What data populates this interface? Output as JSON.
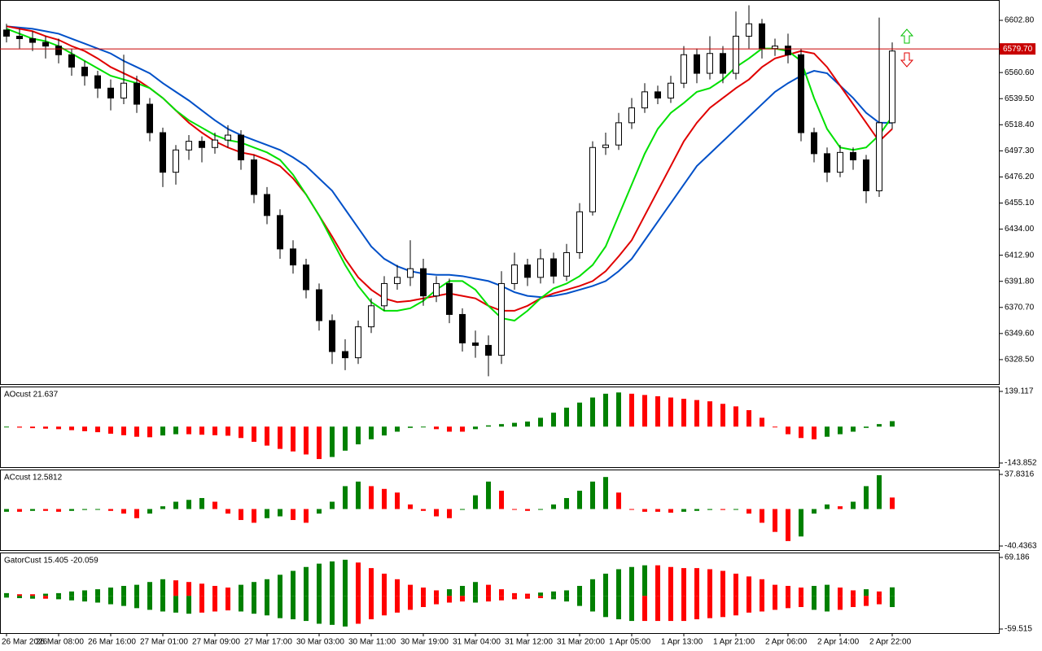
{
  "chart_data": [
    {
      "type": "candlestick",
      "categories": [
        "26 Mar 2026",
        null,
        null,
        null,
        "26 Mar 08:00",
        null,
        null,
        null,
        "26 Mar 16:00",
        null,
        null,
        null,
        "27 Mar 01:00",
        null,
        null,
        null,
        "27 Mar 09:00",
        null,
        null,
        null,
        "27 Mar 17:00",
        null,
        null,
        null,
        "30 Mar 03:00",
        null,
        null,
        null,
        "30 Mar 11:00",
        null,
        null,
        null,
        "30 Mar 19:00",
        null,
        null,
        null,
        "31 Mar 04:00",
        null,
        null,
        null,
        "31 Mar 12:00",
        null,
        null,
        null,
        "31 Mar 20:00",
        null,
        null,
        null,
        "1 Apr 05:00",
        null,
        null,
        null,
        "1 Apr 13:00",
        null,
        null,
        null,
        "1 Apr 21:00",
        null,
        null,
        null,
        "2 Apr 06:00",
        null,
        null,
        null,
        "2 Apr 14:00",
        null,
        null,
        null,
        "2 Apr 22:00"
      ],
      "open": [
        6595,
        6590,
        6588,
        6585,
        6582,
        6575,
        6565,
        6558,
        6548,
        6540,
        6552,
        6535,
        6512,
        6480,
        6498,
        6505,
        6500,
        6506,
        6510,
        6490,
        6462,
        6445,
        6418,
        6405,
        6385,
        6360,
        6335,
        6330,
        6355,
        6372,
        6390,
        6395,
        6402,
        6380,
        6390,
        6365,
        6342,
        6340,
        6332,
        6390,
        6405,
        6395,
        6410,
        6396,
        6415,
        6448,
        6500,
        6502,
        6520,
        6532,
        6545,
        6540,
        6552,
        6575,
        6560,
        6576,
        6560,
        6590,
        6600,
        6580,
        6582,
        6575,
        6512,
        6495,
        6480,
        6496,
        6490,
        6465,
        6520
      ],
      "high": [
        6600,
        6596,
        6594,
        6590,
        6588,
        6580,
        6570,
        6562,
        6555,
        6575,
        6558,
        6540,
        6516,
        6502,
        6510,
        6509,
        6512,
        6518,
        6514,
        6494,
        6468,
        6450,
        6425,
        6410,
        6390,
        6365,
        6345,
        6360,
        6378,
        6396,
        6405,
        6425,
        6410,
        6396,
        6394,
        6370,
        6352,
        6348,
        6400,
        6415,
        6410,
        6418,
        6415,
        6422,
        6455,
        6505,
        6512,
        6528,
        6540,
        6552,
        6550,
        6558,
        6582,
        6580,
        6590,
        6582,
        6610,
        6615,
        6604,
        6588,
        6592,
        6580,
        6516,
        6500,
        6502,
        6500,
        6494,
        6605,
        6585
      ],
      "low": [
        6585,
        6580,
        6578,
        6572,
        6568,
        6558,
        6550,
        6540,
        6530,
        6535,
        6528,
        6505,
        6468,
        6470,
        6490,
        6488,
        6495,
        6500,
        6482,
        6455,
        6438,
        6410,
        6398,
        6378,
        6352,
        6325,
        6320,
        6325,
        6350,
        6368,
        6385,
        6388,
        6372,
        6375,
        6358,
        6335,
        6330,
        6315,
        6325,
        6385,
        6388,
        6390,
        6390,
        6392,
        6410,
        6445,
        6494,
        6498,
        6515,
        6528,
        6535,
        6536,
        6548,
        6552,
        6555,
        6552,
        6555,
        6580,
        6572,
        6574,
        6568,
        6505,
        6488,
        6472,
        6476,
        6482,
        6455,
        6460,
        6515
      ],
      "close": [
        6590,
        6588,
        6585,
        6582,
        6575,
        6565,
        6558,
        6548,
        6540,
        6552,
        6535,
        6512,
        6480,
        6498,
        6505,
        6500,
        6506,
        6510,
        6490,
        6462,
        6445,
        6418,
        6405,
        6385,
        6360,
        6335,
        6330,
        6355,
        6372,
        6390,
        6395,
        6402,
        6380,
        6390,
        6365,
        6342,
        6340,
        6332,
        6390,
        6405,
        6395,
        6410,
        6396,
        6415,
        6448,
        6500,
        6502,
        6520,
        6532,
        6545,
        6540,
        6552,
        6575,
        6560,
        6576,
        6560,
        6590,
        6600,
        6580,
        6582,
        6575,
        6512,
        6495,
        6480,
        6496,
        6490,
        6465,
        6520,
        6578
      ],
      "up_color": "#ffffff",
      "down_color": "#000000",
      "lines": [
        {
          "color": "#0050c8",
          "values": [
            6598,
            6597,
            6596,
            6594,
            6592,
            6588,
            6584,
            6580,
            6576,
            6570,
            6565,
            6560,
            6552,
            6545,
            6538,
            6530,
            6522,
            6515,
            6510,
            6506,
            6502,
            6498,
            6492,
            6485,
            6475,
            6465,
            6450,
            6435,
            6420,
            6410,
            6404,
            6400,
            6398,
            6397,
            6397,
            6396,
            6394,
            6392,
            6388,
            6383,
            6380,
            6379,
            6380,
            6382,
            6385,
            6388,
            6392,
            6400,
            6410,
            6425,
            6440,
            6455,
            6470,
            6485,
            6495,
            6505,
            6515,
            6525,
            6535,
            6545,
            6552,
            6558,
            6562,
            6560,
            6550,
            6540,
            6528,
            6520,
            6520
          ]
        },
        {
          "color": "#e00000",
          "values": [
            6598,
            6596,
            6594,
            6590,
            6587,
            6582,
            6578,
            6572,
            6565,
            6560,
            6555,
            6548,
            6540,
            6530,
            6520,
            6512,
            6505,
            6500,
            6496,
            6494,
            6490,
            6485,
            6475,
            6462,
            6445,
            6428,
            6410,
            6395,
            6385,
            6378,
            6375,
            6376,
            6378,
            6380,
            6382,
            6380,
            6378,
            6372,
            6368,
            6368,
            6372,
            6378,
            6382,
            6385,
            6388,
            6392,
            6400,
            6412,
            6425,
            6445,
            6465,
            6485,
            6505,
            6520,
            6532,
            6540,
            6548,
            6555,
            6565,
            6572,
            6575,
            6578,
            6576,
            6565,
            6550,
            6535,
            6520,
            6505,
            6515
          ]
        },
        {
          "color": "#00e000",
          "values": [
            6596,
            6592,
            6588,
            6586,
            6582,
            6576,
            6570,
            6564,
            6558,
            6555,
            6552,
            6548,
            6540,
            6530,
            6522,
            6516,
            6510,
            6506,
            6504,
            6500,
            6496,
            6490,
            6478,
            6462,
            6445,
            6425,
            6405,
            6388,
            6375,
            6368,
            6368,
            6370,
            6376,
            6385,
            6392,
            6392,
            6385,
            6372,
            6362,
            6360,
            6368,
            6378,
            6386,
            6390,
            6396,
            6405,
            6420,
            6445,
            6470,
            6495,
            6515,
            6528,
            6536,
            6545,
            6548,
            6555,
            6565,
            6572,
            6580,
            6580,
            6578,
            6570,
            6540,
            6515,
            6500,
            6498,
            6500,
            6510,
            6525
          ]
        }
      ],
      "current_price": {
        "value": 6579.7,
        "label": "6579.70"
      },
      "current_price_color": "#c80000",
      "ylim": [
        6308.7,
        6618.6
      ],
      "yticks": [
        {
          "value": 6602.8,
          "label": "6602.80"
        },
        {
          "value": 6560.6,
          "label": "6560.60"
        },
        {
          "value": 6539.5,
          "label": "6539.50"
        },
        {
          "value": 6518.4,
          "label": "6518.40"
        },
        {
          "value": 6497.3,
          "label": "6497.30"
        },
        {
          "value": 6476.2,
          "label": "6476.20"
        },
        {
          "value": 6455.1,
          "label": "6455.10"
        },
        {
          "value": 6434,
          "label": "6434.00"
        },
        {
          "value": 6412.9,
          "label": "6412.90"
        },
        {
          "value": 6391.8,
          "label": "6391.80"
        },
        {
          "value": 6370.7,
          "label": "6370.70"
        },
        {
          "value": 6349.6,
          "label": "6349.60"
        },
        {
          "value": 6328.5,
          "label": "6328.50"
        }
      ]
    },
    {
      "type": "bar",
      "title": "AOcust 21.637",
      "rise_color": "#008000",
      "fall_color": "#ff0000",
      "values": [
        -3,
        -4,
        -6,
        -8,
        -10,
        -14,
        -18,
        -22,
        -28,
        -34,
        -40,
        -42,
        -35,
        -30,
        -30,
        -32,
        -34,
        -36,
        -45,
        -60,
        -75,
        -88,
        -98,
        -110,
        -128,
        -120,
        -95,
        -70,
        -50,
        -35,
        -20,
        -5,
        0,
        -10,
        -20,
        -20,
        -10,
        5,
        10,
        15,
        20,
        35,
        55,
        75,
        95,
        115,
        130,
        135,
        130,
        125,
        120,
        115,
        110,
        105,
        100,
        90,
        80,
        65,
        35,
        0,
        -30,
        -45,
        -50,
        -40,
        -30,
        -20,
        -5,
        10,
        21.637
      ],
      "ylim": [
        -143.852,
        139.117
      ],
      "yticks": [
        -143.852,
        139.117
      ]
    },
    {
      "type": "bar",
      "title": "ACcust 12.5812",
      "rise_color": "#008000",
      "fall_color": "#ff0000",
      "values": [
        -3,
        -3,
        -2,
        -2,
        -3,
        -2,
        -1,
        0,
        -2,
        -5,
        -10,
        -5,
        3,
        8,
        10,
        12,
        8,
        -5,
        -12,
        -15,
        -10,
        -8,
        -12,
        -15,
        -5,
        8,
        25,
        30,
        25,
        22,
        18,
        5,
        -2,
        -8,
        -10,
        0,
        15,
        30,
        20,
        0,
        -2,
        0,
        5,
        12,
        20,
        30,
        35,
        18,
        0,
        -3,
        -3,
        -4,
        -3,
        -2,
        -1,
        -1,
        0,
        -5,
        -15,
        -25,
        -35,
        -30,
        -5,
        5,
        3,
        8,
        25,
        37,
        12.5812
      ],
      "ylim": [
        -40.4363,
        37.8316
      ],
      "yticks": [
        -40.4363,
        37.8316
      ]
    },
    {
      "type": "gator",
      "title": "GatorCust 15.405 -20.059",
      "rise_color": "#008000",
      "fall_color": "#ff0000",
      "upper": [
        5,
        3,
        3,
        4,
        5,
        8,
        10,
        12,
        15,
        18,
        20,
        25,
        30,
        28,
        25,
        22,
        18,
        15,
        20,
        25,
        30,
        38,
        45,
        52,
        58,
        62,
        65,
        60,
        50,
        40,
        30,
        20,
        15,
        10,
        12,
        18,
        25,
        20,
        12,
        5,
        4,
        6,
        8,
        10,
        18,
        30,
        40,
        48,
        52,
        55,
        55,
        52,
        50,
        50,
        48,
        45,
        40,
        35,
        30,
        20,
        18,
        15,
        18,
        20,
        15,
        10,
        12,
        8,
        15.405
      ],
      "lower": [
        -3,
        -4,
        -5,
        -5,
        -6,
        -8,
        -10,
        -12,
        -15,
        -18,
        -22,
        -25,
        -28,
        -30,
        -32,
        -30,
        -28,
        -26,
        -28,
        -32,
        -35,
        -40,
        -42,
        -45,
        -50,
        -52,
        -55,
        -50,
        -42,
        -35,
        -30,
        -25,
        -20,
        -15,
        -12,
        -10,
        -12,
        -10,
        -8,
        -6,
        -5,
        -4,
        -6,
        -10,
        -18,
        -28,
        -38,
        -42,
        -45,
        -45,
        -45,
        -45,
        -45,
        -42,
        -40,
        -38,
        -35,
        -30,
        -28,
        -25,
        -22,
        -20,
        -25,
        -28,
        -25,
        -20,
        -18,
        -15,
        -20.059
      ],
      "ylim": [
        -59.515,
        69.186
      ],
      "yticks": [
        -59.515,
        69.186
      ]
    }
  ]
}
